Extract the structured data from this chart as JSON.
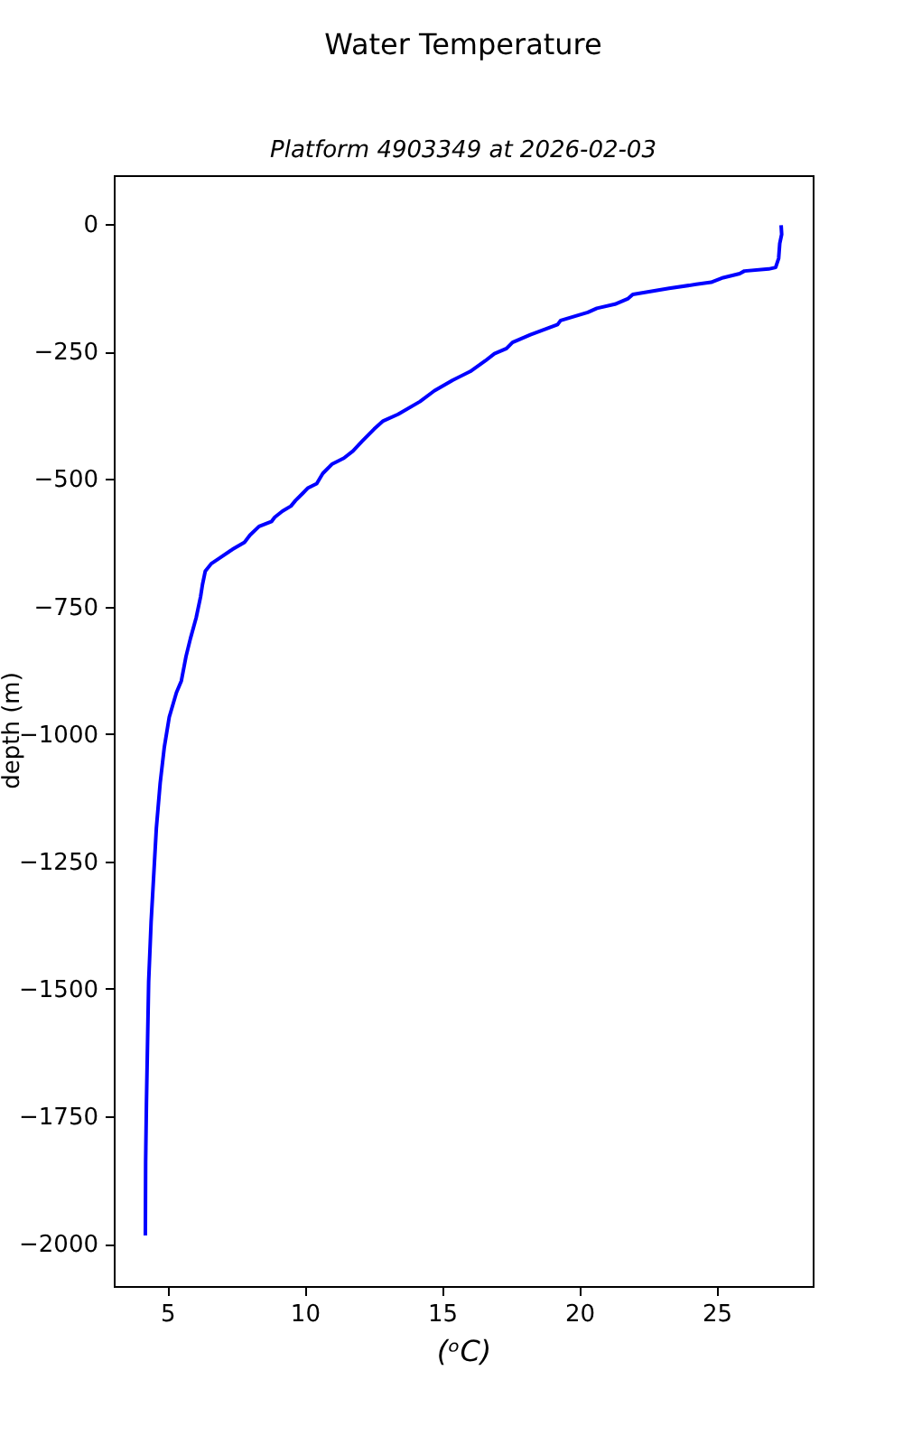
{
  "chart_data": {
    "type": "line",
    "title": "Water Temperature",
    "subtitle": "Platform 4903349 at 2026-02-03",
    "xlabel": "(ᵒC)",
    "ylabel": "depth (m)",
    "xlim": [
      3.05,
      28.5
    ],
    "xticks": [
      5,
      10,
      15,
      20,
      25
    ],
    "ylim": [
      -2083,
      96
    ],
    "yticks": [
      0,
      -250,
      -500,
      -750,
      -1000,
      -1250,
      -1500,
      -1750,
      -2000
    ],
    "series": [
      {
        "color": "#0000ff",
        "x": [
          27.35,
          27.37,
          27.3,
          27.26,
          27.15,
          26.9,
          26.01,
          25.84,
          25.24,
          24.8,
          24.26,
          23.27,
          21.95,
          21.78,
          21.3,
          20.64,
          20.31,
          19.32,
          19.21,
          18.22,
          17.57,
          17.35,
          16.91,
          16.58,
          16.03,
          15.39,
          14.72,
          14.2,
          13.4,
          12.86,
          12.53,
          12.09,
          11.76,
          11.43,
          10.99,
          10.66,
          10.44,
          10.11,
          9.93,
          9.67,
          9.5,
          9.19,
          8.91,
          8.8,
          8.34,
          8.01,
          7.81,
          7.37,
          6.93,
          6.6,
          6.38,
          6.28,
          6.21,
          6.05,
          5.84,
          5.68,
          5.51,
          5.33,
          5.07,
          4.89,
          4.74,
          4.6,
          4.52,
          4.41,
          4.32,
          4.28,
          4.24,
          4.21,
          4.2
        ],
        "values": [
          -2,
          -20,
          -38,
          -67,
          -85,
          -88,
          -92,
          -97,
          -105,
          -114,
          -118,
          -126,
          -138,
          -146,
          -157,
          -165,
          -173,
          -189,
          -197,
          -217,
          -232,
          -244,
          -254,
          -268,
          -289,
          -306,
          -327,
          -348,
          -373,
          -386,
          -402,
          -426,
          -445,
          -459,
          -471,
          -489,
          -509,
          -518,
          -528,
          -542,
          -553,
          -563,
          -575,
          -583,
          -593,
          -610,
          -624,
          -638,
          -654,
          -666,
          -681,
          -707,
          -731,
          -772,
          -813,
          -848,
          -896,
          -919,
          -967,
          -1026,
          -1096,
          -1185,
          -1262,
          -1368,
          -1486,
          -1604,
          -1722,
          -1840,
          -1984
        ]
      }
    ]
  }
}
